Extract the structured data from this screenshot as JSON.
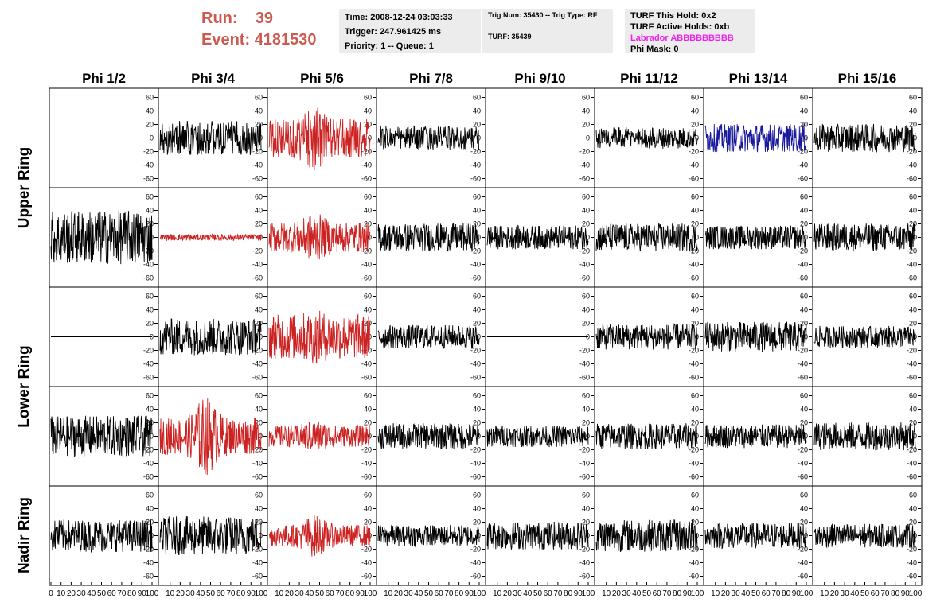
{
  "header": {
    "run_label": "Run:",
    "run_value": "39",
    "event_label": "Event:",
    "event_value": "4181530",
    "time_line": "Time: 2008-12-24 03:03:33",
    "trigger_line": "Trigger: 247.961425 ms",
    "priority_line": "Priority: 1 -- Queue: 1",
    "trig_num_line": "Trig Num: 35430 -- Trig Type: RF",
    "turf_line": "TURF: 35439",
    "turf_hold_line": "TURF This Hold: 0x2",
    "turf_active_line": "TURF Active Holds: 0xb",
    "labrador_line": "Labrador ABBBBBBBBB",
    "phi_mask_line": "Phi Mask: 0"
  },
  "colors": {
    "header_red": "#cc5a50",
    "labrador_magenta": "#ee22ee",
    "trace_black": "#000000",
    "trace_red": "#cc2222",
    "trace_blue": "#1a1a9a",
    "info_box_bg": "#ececec"
  },
  "chart_data": {
    "type": "line",
    "columns": [
      "Phi 1/2",
      "Phi 3/4",
      "Phi 5/6",
      "Phi 7/8",
      "Phi 9/10",
      "Phi 11/12",
      "Phi 13/14",
      "Phi 15/16"
    ],
    "row_groups": [
      "Upper Ring",
      "Lower Ring",
      "Nadir Ring"
    ],
    "xlim": [
      0,
      100
    ],
    "ylim": [
      -70,
      70
    ],
    "x_ticks": [
      0,
      10,
      20,
      30,
      40,
      50,
      60,
      70,
      80,
      90,
      100
    ],
    "x_tick_labels": [
      "0",
      "10",
      "20",
      "30",
      "40",
      "50",
      "60",
      "70",
      "80",
      "90",
      "100"
    ],
    "y_ticks": [
      -60,
      -40,
      -20,
      0,
      20,
      40,
      60
    ],
    "y_tick_labels": [
      "-60",
      "-40",
      "-20",
      "0",
      "20",
      "40",
      "60"
    ],
    "n_samples": 260,
    "traces": [
      [
        {
          "amp": 0,
          "color": "blue",
          "burst": 0
        },
        {
          "amp": 16,
          "color": "black",
          "burst": 0
        },
        {
          "amp": 18,
          "color": "red",
          "burst": 12
        },
        {
          "amp": 11,
          "color": "black",
          "burst": 0
        },
        {
          "amp": 0,
          "color": "black",
          "burst": 0
        },
        {
          "amp": 10,
          "color": "black",
          "burst": 0
        },
        {
          "amp": 13,
          "color": "blue",
          "burst": 0
        },
        {
          "amp": 13,
          "color": "black",
          "burst": 0
        }
      ],
      [
        {
          "amp": 25,
          "color": "black",
          "burst": 0
        },
        {
          "amp": 3,
          "color": "red",
          "burst": 0
        },
        {
          "amp": 14,
          "color": "red",
          "burst": 9
        },
        {
          "amp": 13,
          "color": "black",
          "burst": 0
        },
        {
          "amp": 11,
          "color": "black",
          "burst": 0
        },
        {
          "amp": 13,
          "color": "black",
          "burst": 0
        },
        {
          "amp": 11,
          "color": "black",
          "burst": 0
        },
        {
          "amp": 13,
          "color": "black",
          "burst": 0
        }
      ],
      [
        {
          "amp": 0,
          "color": "black",
          "burst": 0
        },
        {
          "amp": 17,
          "color": "black",
          "burst": 0
        },
        {
          "amp": 21,
          "color": "red",
          "burst": 4
        },
        {
          "amp": 11,
          "color": "black",
          "burst": 0
        },
        {
          "amp": 0,
          "color": "black",
          "burst": 0
        },
        {
          "amp": 12,
          "color": "black",
          "burst": 0
        },
        {
          "amp": 14,
          "color": "black",
          "burst": 0
        },
        {
          "amp": 10,
          "color": "black",
          "burst": 0
        }
      ],
      [
        {
          "amp": 19,
          "color": "black",
          "burst": 0
        },
        {
          "amp": 17,
          "color": "red",
          "burst": 20
        },
        {
          "amp": 10,
          "color": "red",
          "burst": 5
        },
        {
          "amp": 12,
          "color": "black",
          "burst": 0
        },
        {
          "amp": 10,
          "color": "black",
          "burst": 0
        },
        {
          "amp": 12,
          "color": "black",
          "burst": 0
        },
        {
          "amp": 11,
          "color": "black",
          "burst": 0
        },
        {
          "amp": 13,
          "color": "black",
          "burst": 0
        }
      ],
      [
        {
          "amp": 15,
          "color": "black",
          "burst": 0
        },
        {
          "amp": 18,
          "color": "black",
          "burst": 0
        },
        {
          "amp": 10,
          "color": "red",
          "burst": 10
        },
        {
          "amp": 10,
          "color": "black",
          "burst": 0
        },
        {
          "amp": 13,
          "color": "black",
          "burst": 0
        },
        {
          "amp": 15,
          "color": "black",
          "burst": 0
        },
        {
          "amp": 12,
          "color": "black",
          "burst": 0
        },
        {
          "amp": 11,
          "color": "black",
          "burst": 0
        }
      ]
    ]
  }
}
